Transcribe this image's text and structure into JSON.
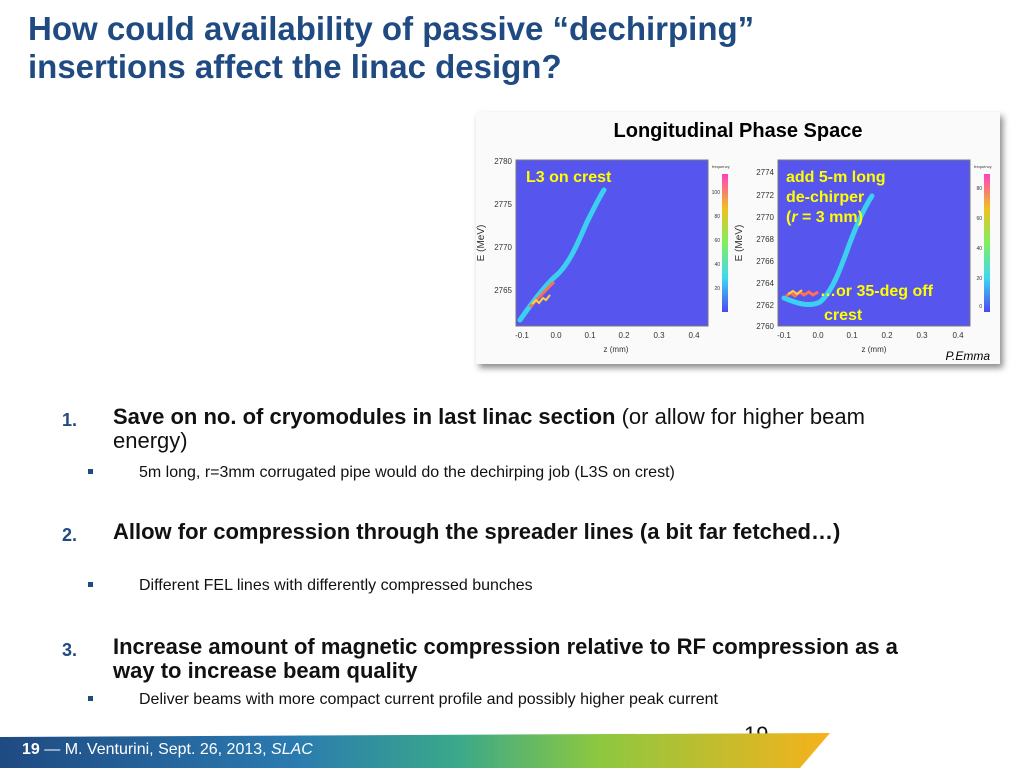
{
  "slide": {
    "title_line1": "How could availability of passive “dechirping”",
    "title_line2": "insertions affect the linac design?",
    "page_number": "19"
  },
  "figure": {
    "title": "Longitudinal Phase Space",
    "credit": "P.Emma",
    "left_plot": {
      "overlay_label": "L3 on crest",
      "y_label": "E (MeV)",
      "x_label": "z (mm)",
      "y_ticks": [
        "2780",
        "2775",
        "2770",
        "2765"
      ],
      "x_ticks": [
        "-0.1",
        "0.0",
        "0.1",
        "0.2",
        "0.3",
        "0.4"
      ],
      "colorbar_title": "frequency",
      "colorbar_ticks": [
        "100",
        "80",
        "60",
        "40",
        "20"
      ]
    },
    "right_plot": {
      "overlay_line1": "add 5-m long",
      "overlay_line2": "de-chirper",
      "overlay_line3_r": "r",
      "overlay_line3_rest": " = 3 mm)",
      "overlay_line3_open": "(",
      "overlay_off1": "…or 35-deg off",
      "overlay_off2": "crest",
      "y_label": "E (MeV)",
      "x_label": "z (mm)",
      "y_ticks": [
        "2774",
        "2772",
        "2770",
        "2768",
        "2766",
        "2764",
        "2762",
        "2760"
      ],
      "x_ticks": [
        "-0.1",
        "0.0",
        "0.1",
        "0.2",
        "0.3",
        "0.4"
      ],
      "colorbar_title": "frequency",
      "colorbar_ticks": [
        "80",
        "60",
        "40",
        "20",
        "0"
      ]
    }
  },
  "items": [
    {
      "number": "1.",
      "bold": "Save on no. of cryomodules in last linac section",
      "normal": " (or allow for higher beam energy)",
      "sub": "5m long, r=3mm corrugated pipe would do the dechirping job  (L3S on crest)"
    },
    {
      "number": "2.",
      "bold": "Allow for compression through the spreader lines (a bit far fetched…)",
      "normal": "",
      "sub": "Different FEL lines with differently compressed bunches"
    },
    {
      "number": "3.",
      "bold": "Increase amount of magnetic compression relative to RF compression as a way to increase beam quality",
      "normal": "",
      "sub": "Deliver beams with more compact current profile and possibly  higher peak current"
    }
  ],
  "footer": {
    "slide_num": "19",
    "dash": " — ",
    "author_date": "M. Venturini, Sept. 26, 2013, ",
    "org": "SLAC"
  },
  "colors": {
    "title": "#1f4a82",
    "plot_bg": "#5656ee",
    "overlay_text": "#ffff00",
    "footer_start": "#1f4a82",
    "footer_end": "#f6b21b"
  }
}
